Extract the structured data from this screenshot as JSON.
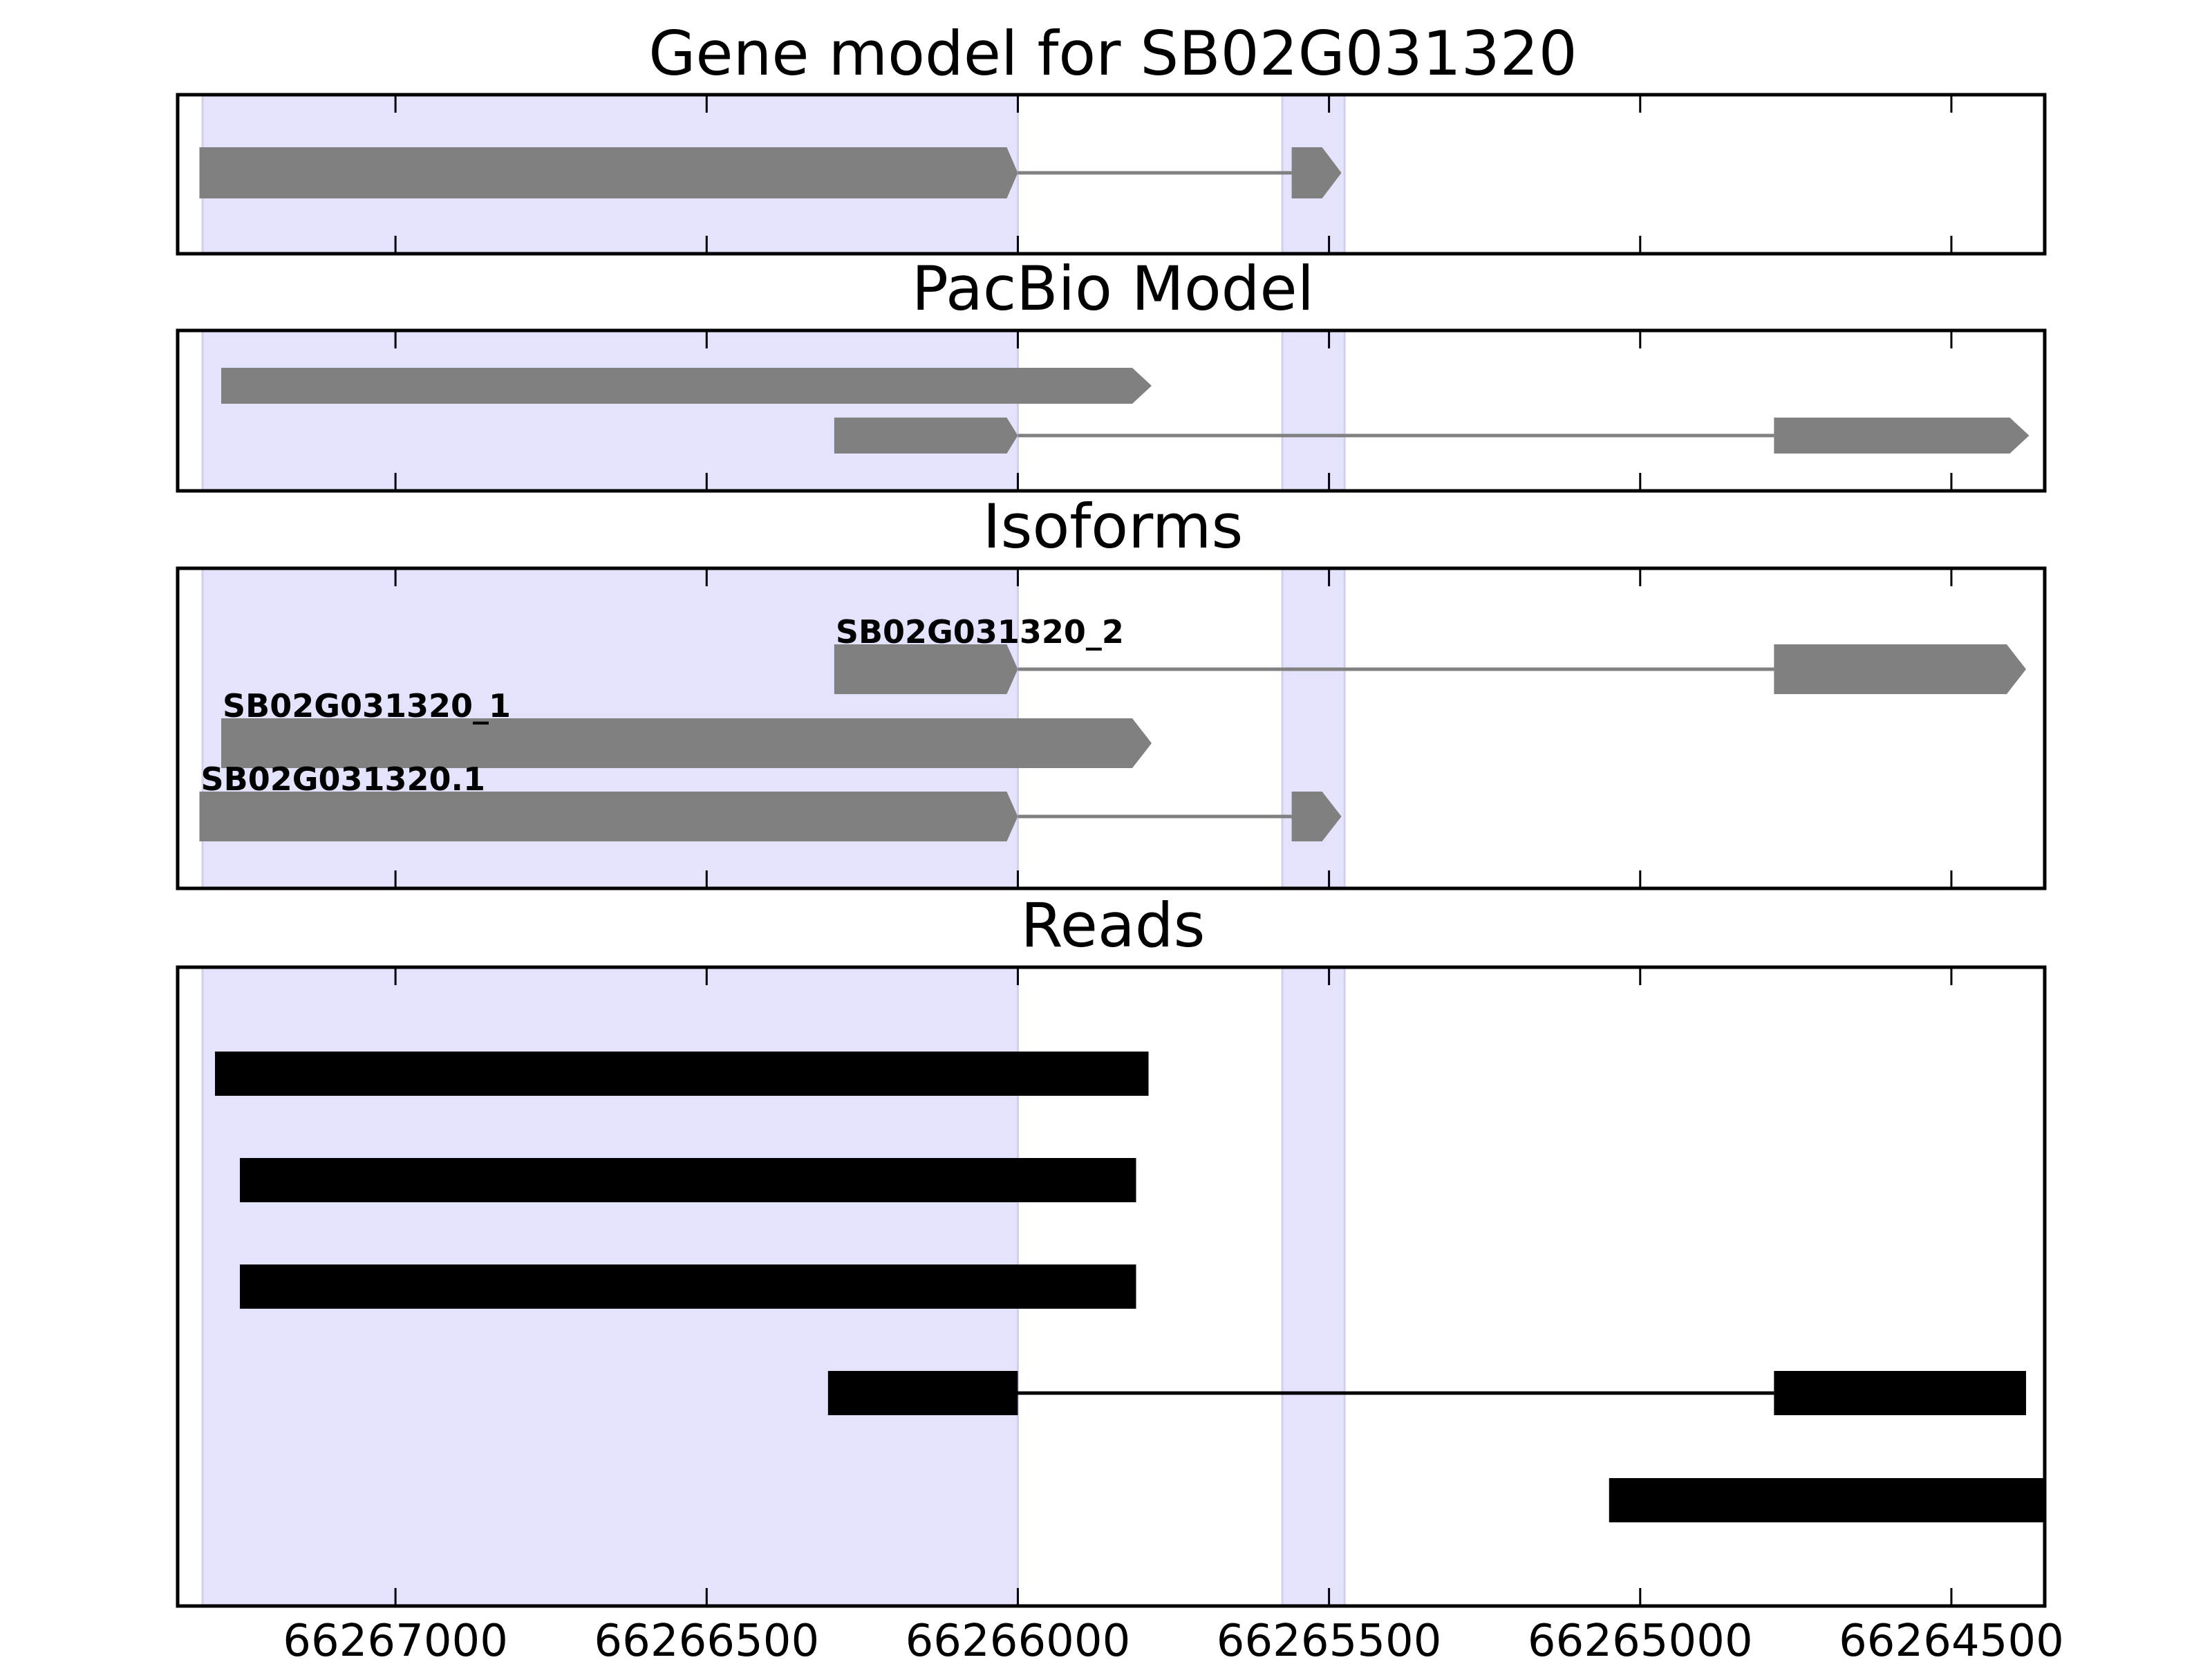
{
  "figure_title": "Gene model for SB02G031320",
  "x_axis": {
    "range": [
      66267350,
      66264350
    ],
    "inverted": true,
    "ticks": [
      {
        "value": 66267000,
        "label": "66267000"
      },
      {
        "value": 66266500,
        "label": "66266500"
      },
      {
        "value": 66266000,
        "label": "66266000"
      },
      {
        "value": 66265500,
        "label": "66265500"
      },
      {
        "value": 66265000,
        "label": "66265000"
      },
      {
        "value": 66264500,
        "label": "66264500"
      }
    ]
  },
  "highlight_color": "#e3e3fd",
  "highlight_regions": [
    [
      66267310,
      66266000
    ],
    [
      66265575,
      66265475
    ]
  ],
  "panels": [
    {
      "id": "gene-model",
      "title": "",
      "feature_color": "#808080",
      "features": [
        {
          "blocks": [
            [
              66267315,
              66266000
            ],
            [
              66265560,
              66265480
            ]
          ],
          "row": 0,
          "arrow": true,
          "label": ""
        }
      ]
    },
    {
      "id": "pacbio-model",
      "title": "PacBio Model",
      "feature_color": "#808080",
      "features": [
        {
          "blocks": [
            [
              66267280,
              66265785
            ]
          ],
          "row": 0,
          "arrow": true,
          "label": ""
        },
        {
          "blocks": [
            [
              66266295,
              66266000
            ],
            [
              66264785,
              66264375
            ]
          ],
          "row": 1,
          "arrow": true,
          "label": ""
        }
      ]
    },
    {
      "id": "isoforms",
      "title": "Isoforms",
      "feature_color": "#808080",
      "features": [
        {
          "blocks": [
            [
              66266295,
              66266000
            ],
            [
              66264785,
              66264380
            ]
          ],
          "row": 0,
          "arrow": true,
          "label": "SB02G031320_2"
        },
        {
          "blocks": [
            [
              66267280,
              66265785
            ]
          ],
          "row": 1,
          "arrow": true,
          "label": "SB02G031320_1"
        },
        {
          "blocks": [
            [
              66267315,
              66266000
            ],
            [
              66265560,
              66265480
            ]
          ],
          "row": 2,
          "arrow": true,
          "label": "SB02G031320.1"
        }
      ]
    },
    {
      "id": "reads",
      "title": "Reads",
      "feature_color": "#000000",
      "features": [
        {
          "blocks": [
            [
              66267290,
              66265790
            ]
          ],
          "row": 0,
          "arrow": false,
          "label": ""
        },
        {
          "blocks": [
            [
              66267250,
              66265810
            ]
          ],
          "row": 1,
          "arrow": false,
          "label": ""
        },
        {
          "blocks": [
            [
              66267250,
              66265810
            ]
          ],
          "row": 2,
          "arrow": false,
          "label": ""
        },
        {
          "blocks": [
            [
              66266305,
              66266000
            ],
            [
              66264785,
              66264380
            ]
          ],
          "row": 3,
          "arrow": false,
          "label": ""
        },
        {
          "blocks": [
            [
              66265050,
              66264350
            ]
          ],
          "row": 4,
          "arrow": false,
          "label": ""
        }
      ]
    }
  ]
}
